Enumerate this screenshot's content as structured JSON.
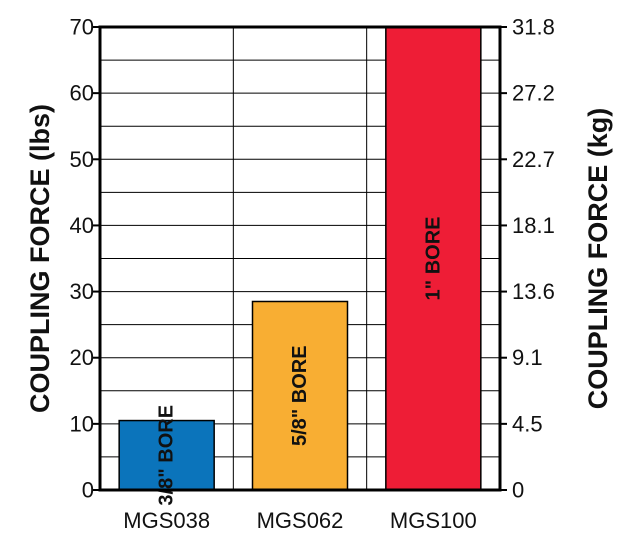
{
  "chart_data": {
    "type": "bar",
    "categories": [
      "MGS038",
      "MGS062",
      "MGS100"
    ],
    "values": [
      10.5,
      28.5,
      70
    ],
    "bar_labels": [
      "3/8\" BORE",
      "5/8\" BORE",
      "1\" BORE"
    ],
    "bar_colors": [
      "#0b74bb",
      "#f8ae33",
      "#ee1d36"
    ],
    "ylabel_left": "COUPLING FORCE (lbs)",
    "ylabel_right": "COUPLING FORCE (kg)",
    "ylim": [
      0,
      70
    ],
    "yticks_left": [
      "0",
      "10",
      "20",
      "30",
      "40",
      "50",
      "60",
      "70"
    ],
    "yticks_right": [
      "0",
      "4.5",
      "9.1",
      "13.6",
      "18.1",
      "22.7",
      "27.2",
      "31.8"
    ],
    "grid": true
  }
}
